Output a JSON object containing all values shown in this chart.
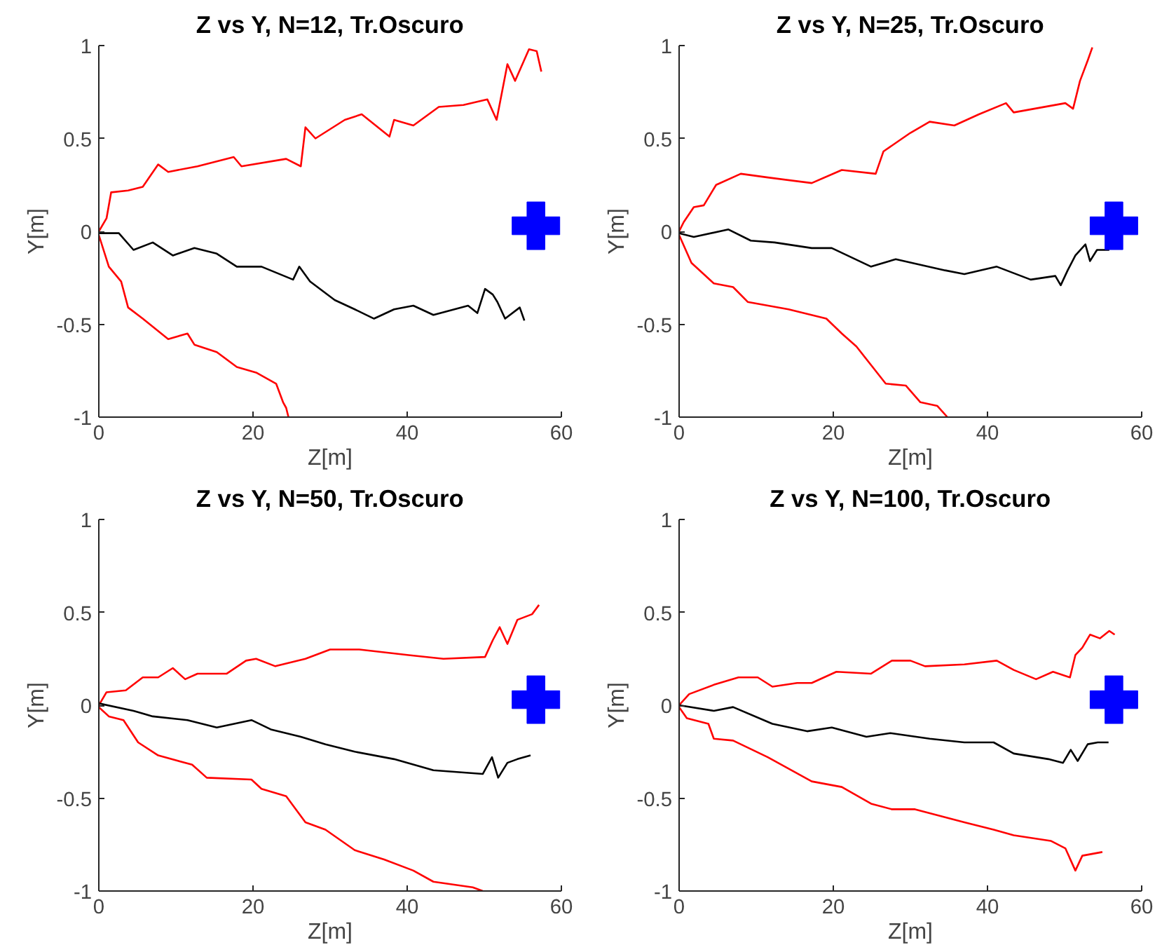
{
  "chart_data": [
    {
      "type": "line",
      "title": "Z vs Y, N=12, Tr.Oscuro",
      "xlabel": "Z[m]",
      "ylabel": "Y[m]",
      "xlim": [
        0,
        60
      ],
      "ylim": [
        -1,
        1
      ],
      "xticks": [
        0,
        20,
        40,
        60
      ],
      "yticks": [
        -1,
        -0.5,
        0,
        0.5,
        1
      ],
      "grid": false,
      "series": [
        {
          "color": "#ff0000",
          "x": [
            0,
            1,
            1.6,
            3.8,
            5.7,
            7.7,
            9,
            12.8,
            17.5,
            18.5,
            24.3,
            26.2,
            26.8,
            28.1,
            31.9,
            34.1,
            37.7,
            38.3,
            40.8,
            44.1,
            47.3,
            50.4,
            51.6,
            53,
            54,
            55.8,
            56.8,
            57.4
          ],
          "values": [
            0,
            0.07,
            0.21,
            0.22,
            0.24,
            0.36,
            0.32,
            0.35,
            0.4,
            0.35,
            0.39,
            0.35,
            0.56,
            0.5,
            0.6,
            0.63,
            0.51,
            0.6,
            0.57,
            0.67,
            0.68,
            0.71,
            0.6,
            0.9,
            0.81,
            0.98,
            0.97,
            0.86
          ]
        },
        {
          "color": "#ff0000",
          "x": [
            0,
            1.3,
            2.9,
            3.8,
            5.7,
            9,
            11.5,
            12.4,
            15.3,
            17.9,
            20.4,
            23,
            23.9,
            24.3,
            24.6
          ],
          "values": [
            -0.02,
            -0.19,
            -0.27,
            -0.41,
            -0.47,
            -0.58,
            -0.55,
            -0.61,
            -0.65,
            -0.73,
            -0.76,
            -0.82,
            -0.92,
            -0.95,
            -1
          ]
        },
        {
          "color": "#000000",
          "x": [
            0,
            2.6,
            4.5,
            7,
            9.6,
            12.4,
            15.3,
            17.9,
            21.1,
            25.2,
            26,
            27.4,
            30.6,
            33.2,
            35.7,
            38.3,
            40.8,
            43.4,
            47.9,
            49.1,
            50.1,
            51.1,
            51.7,
            52.7,
            54.6,
            55.2
          ],
          "values": [
            -0.01,
            -0.01,
            -0.1,
            -0.06,
            -0.13,
            -0.09,
            -0.12,
            -0.19,
            -0.19,
            -0.26,
            -0.19,
            -0.27,
            -0.37,
            -0.42,
            -0.47,
            -0.42,
            -0.4,
            -0.45,
            -0.4,
            -0.44,
            -0.31,
            -0.34,
            -0.38,
            -0.47,
            -0.41,
            -0.48
          ]
        },
        {
          "type": "scatter",
          "marker": "cross",
          "color": "#0000ff",
          "x": [
            56.7
          ],
          "values": [
            0.03
          ]
        }
      ]
    },
    {
      "type": "line",
      "title": "Z vs Y, N=25, Tr.Oscuro",
      "xlabel": "Z[m]",
      "ylabel": "Y[m]",
      "xlim": [
        0,
        60
      ],
      "ylim": [
        -1,
        1
      ],
      "xticks": [
        0,
        20,
        40,
        60
      ],
      "yticks": [
        -1,
        -0.5,
        0,
        0.5,
        1
      ],
      "grid": false,
      "series": [
        {
          "color": "#ff0000",
          "x": [
            0,
            0.6,
            1.9,
            3.2,
            4.8,
            8,
            11.5,
            17.2,
            21.1,
            25.5,
            26.5,
            30,
            32.5,
            35.7,
            38.9,
            42.4,
            43.4,
            50.1,
            51.1,
            52,
            53,
            53.6
          ],
          "values": [
            0,
            0.05,
            0.13,
            0.14,
            0.25,
            0.31,
            0.29,
            0.26,
            0.33,
            0.31,
            0.43,
            0.53,
            0.59,
            0.57,
            0.63,
            0.69,
            0.64,
            0.69,
            0.66,
            0.81,
            0.92,
            0.99
          ]
        },
        {
          "color": "#ff0000",
          "x": [
            0,
            1.6,
            4.5,
            7,
            8.9,
            14.2,
            19.1,
            21.1,
            23,
            24.9,
            26.8,
            29.4,
            31.3,
            33.5,
            34.8
          ],
          "values": [
            -0.02,
            -0.17,
            -0.28,
            -0.3,
            -0.38,
            -0.42,
            -0.47,
            -0.55,
            -0.62,
            -0.72,
            -0.82,
            -0.83,
            -0.92,
            -0.94,
            -1
          ]
        },
        {
          "color": "#000000",
          "x": [
            0,
            1.9,
            6.4,
            9.3,
            12.4,
            17.2,
            19.8,
            24.9,
            28.1,
            34.5,
            37,
            41.2,
            45.6,
            48.8,
            49.5,
            50.4,
            51.4,
            52.7,
            53.3,
            54.2,
            55.8
          ],
          "values": [
            -0.01,
            -0.03,
            0.01,
            -0.05,
            -0.06,
            -0.09,
            -0.09,
            -0.19,
            -0.15,
            -0.21,
            -0.23,
            -0.19,
            -0.26,
            -0.24,
            -0.29,
            -0.21,
            -0.13,
            -0.07,
            -0.16,
            -0.1,
            -0.1
          ]
        },
        {
          "type": "scatter",
          "marker": "cross",
          "color": "#0000ff",
          "x": [
            56.4
          ],
          "values": [
            0.03
          ]
        }
      ]
    },
    {
      "type": "line",
      "title": "Z vs Y, N=50, Tr.Oscuro",
      "xlabel": "Z[m]",
      "ylabel": "Y[m]",
      "xlim": [
        0,
        60
      ],
      "ylim": [
        -1,
        1
      ],
      "xticks": [
        0,
        20,
        40,
        60
      ],
      "yticks": [
        -1,
        -0.5,
        0,
        0.5,
        1
      ],
      "grid": false,
      "series": [
        {
          "color": "#ff0000",
          "x": [
            0,
            1,
            3.5,
            5.7,
            7.7,
            9.6,
            11.2,
            12.8,
            16.6,
            19.1,
            20.4,
            22.9,
            26.8,
            30,
            33.8,
            40.2,
            44.7,
            50.1,
            51.1,
            52,
            53,
            54.3,
            56.2,
            57.1
          ],
          "values": [
            0,
            0.07,
            0.08,
            0.15,
            0.15,
            0.2,
            0.14,
            0.17,
            0.17,
            0.24,
            0.25,
            0.21,
            0.25,
            0.3,
            0.3,
            0.27,
            0.25,
            0.26,
            0.35,
            0.42,
            0.33,
            0.46,
            0.49,
            0.54
          ]
        },
        {
          "color": "#ff0000",
          "x": [
            0,
            1.3,
            3.2,
            5.1,
            7.7,
            12.1,
            14,
            19.8,
            21.1,
            24.3,
            26.8,
            29.4,
            33.2,
            37,
            40.8,
            43.4,
            48.5,
            49.8
          ],
          "values": [
            -0.01,
            -0.06,
            -0.08,
            -0.2,
            -0.27,
            -0.32,
            -0.39,
            -0.4,
            -0.45,
            -0.49,
            -0.63,
            -0.67,
            -0.78,
            -0.83,
            -0.89,
            -0.95,
            -0.98,
            -1
          ]
        },
        {
          "color": "#000000",
          "x": [
            0,
            4.5,
            7,
            11.5,
            15.3,
            19.8,
            22.3,
            26.2,
            29.4,
            33.2,
            38.3,
            43.4,
            49.8,
            51,
            51.8,
            53,
            54.3,
            56
          ],
          "values": [
            0.01,
            -0.03,
            -0.06,
            -0.08,
            -0.12,
            -0.08,
            -0.13,
            -0.17,
            -0.21,
            -0.25,
            -0.29,
            -0.35,
            -0.37,
            -0.28,
            -0.39,
            -0.31,
            -0.29,
            -0.27
          ]
        },
        {
          "type": "scatter",
          "marker": "cross",
          "color": "#0000ff",
          "x": [
            56.7
          ],
          "values": [
            0.03
          ]
        }
      ]
    },
    {
      "type": "line",
      "title": "Z vs Y, N=100, Tr.Oscuro",
      "xlabel": "Z[m]",
      "ylabel": "Y[m]",
      "xlim": [
        0,
        60
      ],
      "ylim": [
        -1,
        1
      ],
      "xticks": [
        0,
        20,
        40,
        60
      ],
      "yticks": [
        -1,
        -0.5,
        0,
        0.5,
        1
      ],
      "grid": false,
      "series": [
        {
          "color": "#ff0000",
          "x": [
            0,
            1.3,
            4.5,
            7.7,
            10.2,
            12.1,
            15.3,
            17.2,
            20.4,
            24.9,
            27.6,
            30,
            31.9,
            37,
            41.2,
            43.4,
            46.3,
            48.5,
            50.7,
            51.4,
            52.3,
            53.3,
            54.6,
            55.8,
            56.5
          ],
          "values": [
            0,
            0.06,
            0.11,
            0.15,
            0.15,
            0.1,
            0.12,
            0.12,
            0.18,
            0.17,
            0.24,
            0.24,
            0.21,
            0.22,
            0.24,
            0.19,
            0.14,
            0.18,
            0.15,
            0.27,
            0.31,
            0.38,
            0.36,
            0.4,
            0.38
          ]
        },
        {
          "color": "#ff0000",
          "x": [
            0,
            1,
            3.8,
            4.5,
            7,
            11.5,
            17.2,
            21.1,
            24.9,
            27.6,
            30.6,
            37,
            40.8,
            43.4,
            48.2,
            50.1,
            51.4,
            52.3,
            54.9
          ],
          "values": [
            -0.01,
            -0.07,
            -0.1,
            -0.18,
            -0.19,
            -0.28,
            -0.41,
            -0.44,
            -0.53,
            -0.56,
            -0.56,
            -0.63,
            -0.67,
            -0.7,
            -0.73,
            -0.77,
            -0.89,
            -0.81,
            -0.79
          ]
        },
        {
          "color": "#000000",
          "x": [
            0,
            4.5,
            7,
            12.1,
            16.6,
            19.8,
            24.3,
            27.4,
            32.5,
            37,
            40.8,
            43.4,
            47.9,
            49.8,
            50.8,
            51.7,
            53,
            54.3,
            55.7
          ],
          "values": [
            0,
            -0.03,
            -0.01,
            -0.1,
            -0.14,
            -0.12,
            -0.17,
            -0.15,
            -0.18,
            -0.2,
            -0.2,
            -0.26,
            -0.29,
            -0.31,
            -0.24,
            -0.3,
            -0.21,
            -0.2,
            -0.2
          ]
        },
        {
          "type": "scatter",
          "marker": "cross",
          "color": "#0000ff",
          "x": [
            56.4
          ],
          "values": [
            0.03
          ]
        }
      ]
    }
  ]
}
